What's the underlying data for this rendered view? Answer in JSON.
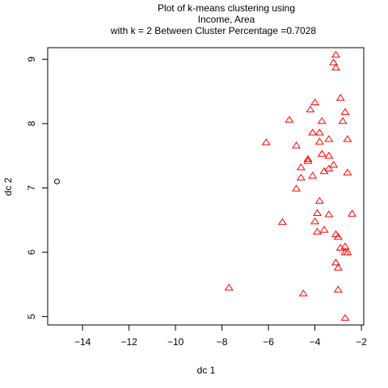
{
  "chart_data": {
    "type": "scatter",
    "title_lines": [
      "Plot of k-means clustering using",
      "Income, Area",
      "with  k = 2 Between Cluster Percentage =0.7028"
    ],
    "xlabel": "dc 1",
    "ylabel": "dc 2",
    "xlim": [
      -15.5,
      -1.9
    ],
    "ylim": [
      4.87,
      9.18
    ],
    "xticks": [
      -14,
      -12,
      -10,
      -8,
      -6,
      -4,
      -2
    ],
    "yticks": [
      5,
      6,
      7,
      8,
      9
    ],
    "grid": false,
    "series": [
      {
        "marker": "circle",
        "color": "#000000",
        "points": [
          [
            -15.1,
            7.1
          ]
        ]
      },
      {
        "marker": "triangle",
        "color": "#ff0000",
        "points": [
          [
            -3.1,
            9.07
          ],
          [
            -3.2,
            8.95
          ],
          [
            -3.1,
            8.87
          ],
          [
            -2.9,
            8.4
          ],
          [
            -4.0,
            8.33
          ],
          [
            -4.2,
            8.22
          ],
          [
            -2.7,
            8.18
          ],
          [
            -5.1,
            8.06
          ],
          [
            -3.7,
            8.04
          ],
          [
            -2.8,
            8.04
          ],
          [
            -4.1,
            7.86
          ],
          [
            -3.8,
            7.86
          ],
          [
            -3.4,
            7.76
          ],
          [
            -2.6,
            7.76
          ],
          [
            -6.1,
            7.71
          ],
          [
            -3.8,
            7.72
          ],
          [
            -4.8,
            7.66
          ],
          [
            -3.7,
            7.53
          ],
          [
            -3.4,
            7.5
          ],
          [
            -4.3,
            7.45
          ],
          [
            -4.3,
            7.42
          ],
          [
            -3.2,
            7.36
          ],
          [
            -4.6,
            7.32
          ],
          [
            -3.4,
            7.3
          ],
          [
            -3.6,
            7.26
          ],
          [
            -2.6,
            7.24
          ],
          [
            -4.1,
            7.19
          ],
          [
            -4.6,
            7.16
          ],
          [
            -4.8,
            6.99
          ],
          [
            -3.8,
            6.8
          ],
          [
            -3.9,
            6.61
          ],
          [
            -3.4,
            6.59
          ],
          [
            -2.4,
            6.6
          ],
          [
            -4.0,
            6.48
          ],
          [
            -5.4,
            6.47
          ],
          [
            -3.6,
            6.35
          ],
          [
            -3.9,
            6.32
          ],
          [
            -3.1,
            6.28
          ],
          [
            -3.0,
            6.24
          ],
          [
            -2.7,
            6.09
          ],
          [
            -2.9,
            6.07
          ],
          [
            -2.7,
            6.0
          ],
          [
            -2.6,
            6.0
          ],
          [
            -3.1,
            5.84
          ],
          [
            -3.0,
            5.76
          ],
          [
            -7.7,
            5.45
          ],
          [
            -3.0,
            5.42
          ],
          [
            -4.5,
            5.36
          ],
          [
            -2.7,
            4.98
          ]
        ]
      }
    ]
  }
}
